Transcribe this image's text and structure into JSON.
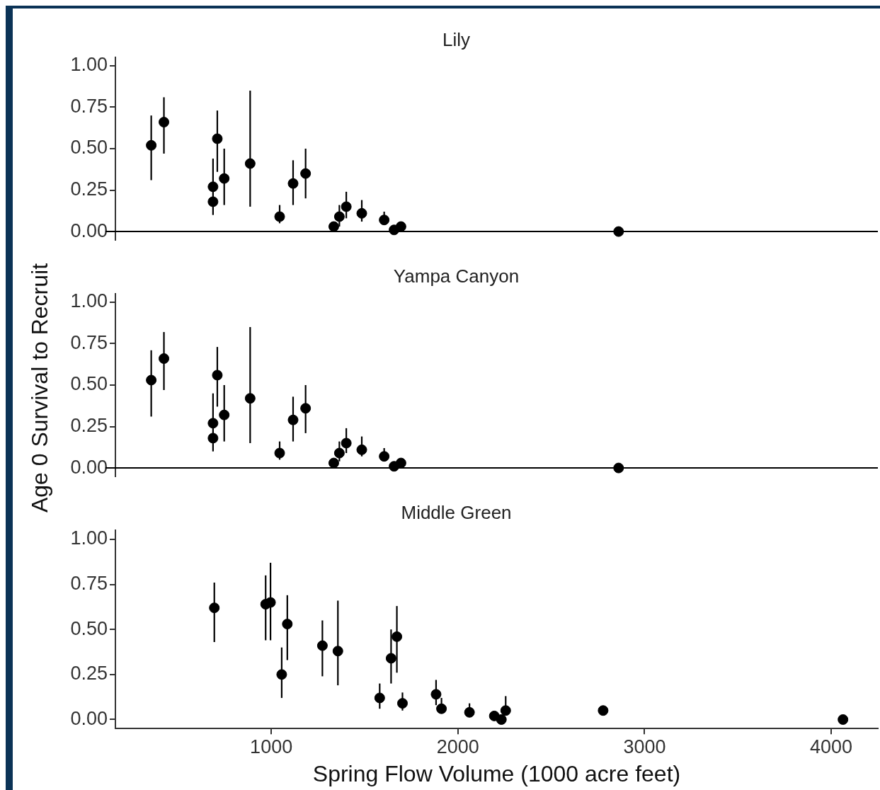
{
  "chart_data": [
    {
      "type": "scatter",
      "title": "Lily",
      "ylabel": "Age 0 Survival to Recruit",
      "xlim": [
        165,
        4250
      ],
      "xticks": [
        1000,
        2000,
        3000,
        4000
      ],
      "ylim": [
        -0.05,
        1.05
      ],
      "yticks": [
        {
          "value": 0,
          "label": "0.00"
        },
        {
          "value": 0.25,
          "label": "0.25"
        },
        {
          "value": 0.5,
          "label": "0.50"
        },
        {
          "value": 0.75,
          "label": "0.75"
        },
        {
          "value": 1,
          "label": "1.00"
        }
      ],
      "tick_labels": "y",
      "grid": false,
      "legend": false,
      "marker": "circle",
      "ref_lines": [
        {
          "axis": "y",
          "value": 0,
          "color": "#000000"
        }
      ],
      "series": [
        {
          "color": "#000000",
          "x": [
            357,
            425,
            688,
            688,
            711,
            748,
            887,
            1045,
            1117,
            1184,
            1335,
            1365,
            1402,
            1485,
            1605,
            1658,
            1695,
            2861
          ],
          "values": [
            0.52,
            0.66,
            0.18,
            0.27,
            0.56,
            0.32,
            0.41,
            0.09,
            0.29,
            0.35,
            0.03,
            0.09,
            0.15,
            0.11,
            0.07,
            0.01,
            0.03,
            0.0
          ],
          "errors": [
            [
              0.31,
              0.7
            ],
            [
              0.47,
              0.81
            ],
            [
              0.1,
              0.25
            ],
            [
              0.27,
              0.44
            ],
            [
              0.36,
              0.73
            ],
            [
              0.16,
              0.5
            ],
            [
              0.15,
              0.85
            ],
            [
              0.05,
              0.16
            ],
            [
              0.16,
              0.43
            ],
            [
              0.2,
              0.5
            ],
            null,
            [
              0.03,
              0.16
            ],
            [
              0.08,
              0.24
            ],
            [
              0.06,
              0.19
            ],
            [
              0.04,
              0.12
            ],
            null,
            null,
            null
          ]
        }
      ]
    },
    {
      "type": "scatter",
      "title": "Yampa Canyon",
      "xlim": [
        165,
        4250
      ],
      "xticks": [
        1000,
        2000,
        3000,
        4000
      ],
      "ylim": [
        -0.05,
        1.05
      ],
      "yticks": [
        {
          "value": 0,
          "label": "0.00"
        },
        {
          "value": 0.25,
          "label": "0.25"
        },
        {
          "value": 0.5,
          "label": "0.50"
        },
        {
          "value": 0.75,
          "label": "0.75"
        },
        {
          "value": 1,
          "label": "1.00"
        }
      ],
      "tick_labels": "y",
      "grid": false,
      "legend": false,
      "marker": "circle",
      "ref_lines": [
        {
          "axis": "y",
          "value": 0,
          "color": "#000000"
        }
      ],
      "series": [
        {
          "color": "#000000",
          "x": [
            357,
            425,
            688,
            688,
            711,
            748,
            887,
            1045,
            1117,
            1184,
            1335,
            1365,
            1402,
            1485,
            1605,
            1658,
            1695,
            2861
          ],
          "values": [
            0.53,
            0.66,
            0.18,
            0.27,
            0.56,
            0.32,
            0.42,
            0.09,
            0.29,
            0.36,
            0.03,
            0.09,
            0.15,
            0.11,
            0.07,
            0.01,
            0.03,
            0.0
          ],
          "errors": [
            [
              0.31,
              0.71
            ],
            [
              0.47,
              0.82
            ],
            [
              0.1,
              0.25
            ],
            [
              0.27,
              0.45
            ],
            [
              0.37,
              0.73
            ],
            [
              0.16,
              0.5
            ],
            [
              0.15,
              0.85
            ],
            [
              0.05,
              0.16
            ],
            [
              0.16,
              0.43
            ],
            [
              0.21,
              0.5
            ],
            null,
            [
              0.04,
              0.16
            ],
            [
              0.09,
              0.24
            ],
            [
              0.07,
              0.19
            ],
            [
              0.04,
              0.12
            ],
            null,
            null,
            null
          ]
        }
      ]
    },
    {
      "type": "scatter",
      "title": "Middle Green",
      "xlabel": "Spring Flow Volume (1000 acre feet)",
      "xlim": [
        165,
        4250
      ],
      "xticks": [
        1000,
        2000,
        3000,
        4000
      ],
      "ylim": [
        -0.05,
        1.05
      ],
      "yticks": [
        {
          "value": 0,
          "label": "0.00"
        },
        {
          "value": 0.25,
          "label": "0.25"
        },
        {
          "value": 0.5,
          "label": "0.50"
        },
        {
          "value": 0.75,
          "label": "0.75"
        },
        {
          "value": 1,
          "label": "1.00"
        }
      ],
      "grid": false,
      "legend": false,
      "marker": "circle",
      "series": [
        {
          "color": "#000000",
          "x": [
            695,
            970,
            996,
            1056,
            1086,
            1274,
            1357,
            1581,
            1642,
            1673,
            1703,
            1883,
            1912,
            2062,
            2195,
            2233,
            2256,
            2778,
            4063
          ],
          "values": [
            0.62,
            0.64,
            0.65,
            0.25,
            0.53,
            0.41,
            0.38,
            0.12,
            0.34,
            0.46,
            0.09,
            0.14,
            0.06,
            0.04,
            0.02,
            0.0,
            0.05,
            0.05,
            0.0
          ],
          "errors": [
            [
              0.43,
              0.76
            ],
            [
              0.44,
              0.8
            ],
            [
              0.44,
              0.87
            ],
            [
              0.12,
              0.4
            ],
            [
              0.33,
              0.69
            ],
            [
              0.24,
              0.55
            ],
            [
              0.19,
              0.66
            ],
            [
              0.06,
              0.2
            ],
            [
              0.2,
              0.5
            ],
            [
              0.26,
              0.63
            ],
            [
              0.05,
              0.15
            ],
            [
              0.08,
              0.22
            ],
            [
              0.06,
              0.12
            ],
            [
              0.04,
              0.09
            ],
            null,
            null,
            [
              0.05,
              0.13
            ],
            null,
            null
          ]
        }
      ]
    }
  ]
}
